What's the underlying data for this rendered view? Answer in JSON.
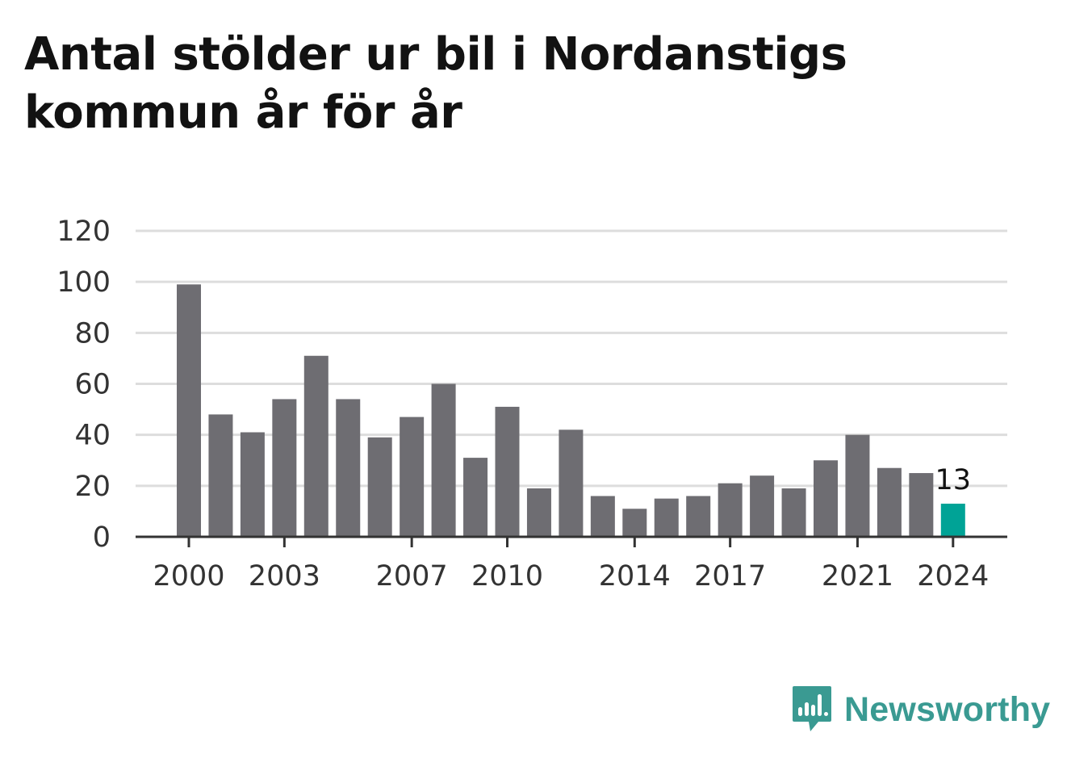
{
  "chart_data": {
    "type": "bar",
    "title": "Antal stölder ur bil i Nordanstigs kommun år för år",
    "xlabel": "",
    "ylabel": "",
    "categories": [
      "2000",
      "2001",
      "2002",
      "2003",
      "2004",
      "2005",
      "2006",
      "2007",
      "2008",
      "2009",
      "2010",
      "2011",
      "2012",
      "2013",
      "2014",
      "2015",
      "2016",
      "2017",
      "2018",
      "2019",
      "2020",
      "2021",
      "2022",
      "2023",
      "2024"
    ],
    "values": [
      99,
      48,
      41,
      54,
      71,
      54,
      39,
      47,
      60,
      31,
      51,
      19,
      42,
      16,
      11,
      15,
      16,
      21,
      24,
      19,
      30,
      40,
      27,
      25,
      13
    ],
    "ylim": [
      0,
      120
    ],
    "yticks": [
      "0",
      "20",
      "40",
      "60",
      "80",
      "100",
      "120"
    ],
    "xticks": [
      "2000",
      "2003",
      "2007",
      "2010",
      "2014",
      "2017",
      "2021",
      "2024"
    ],
    "highlight": {
      "category": "2024",
      "label": "13"
    },
    "grid": true,
    "colors": {
      "bar": "#6e6d72",
      "highlight": "#00a396",
      "grid": "#dddddd",
      "axis": "#333333"
    }
  },
  "brand": {
    "name": "Newsworthy",
    "icon": "newsworthy-logo-icon",
    "color": "#3a9a92"
  }
}
